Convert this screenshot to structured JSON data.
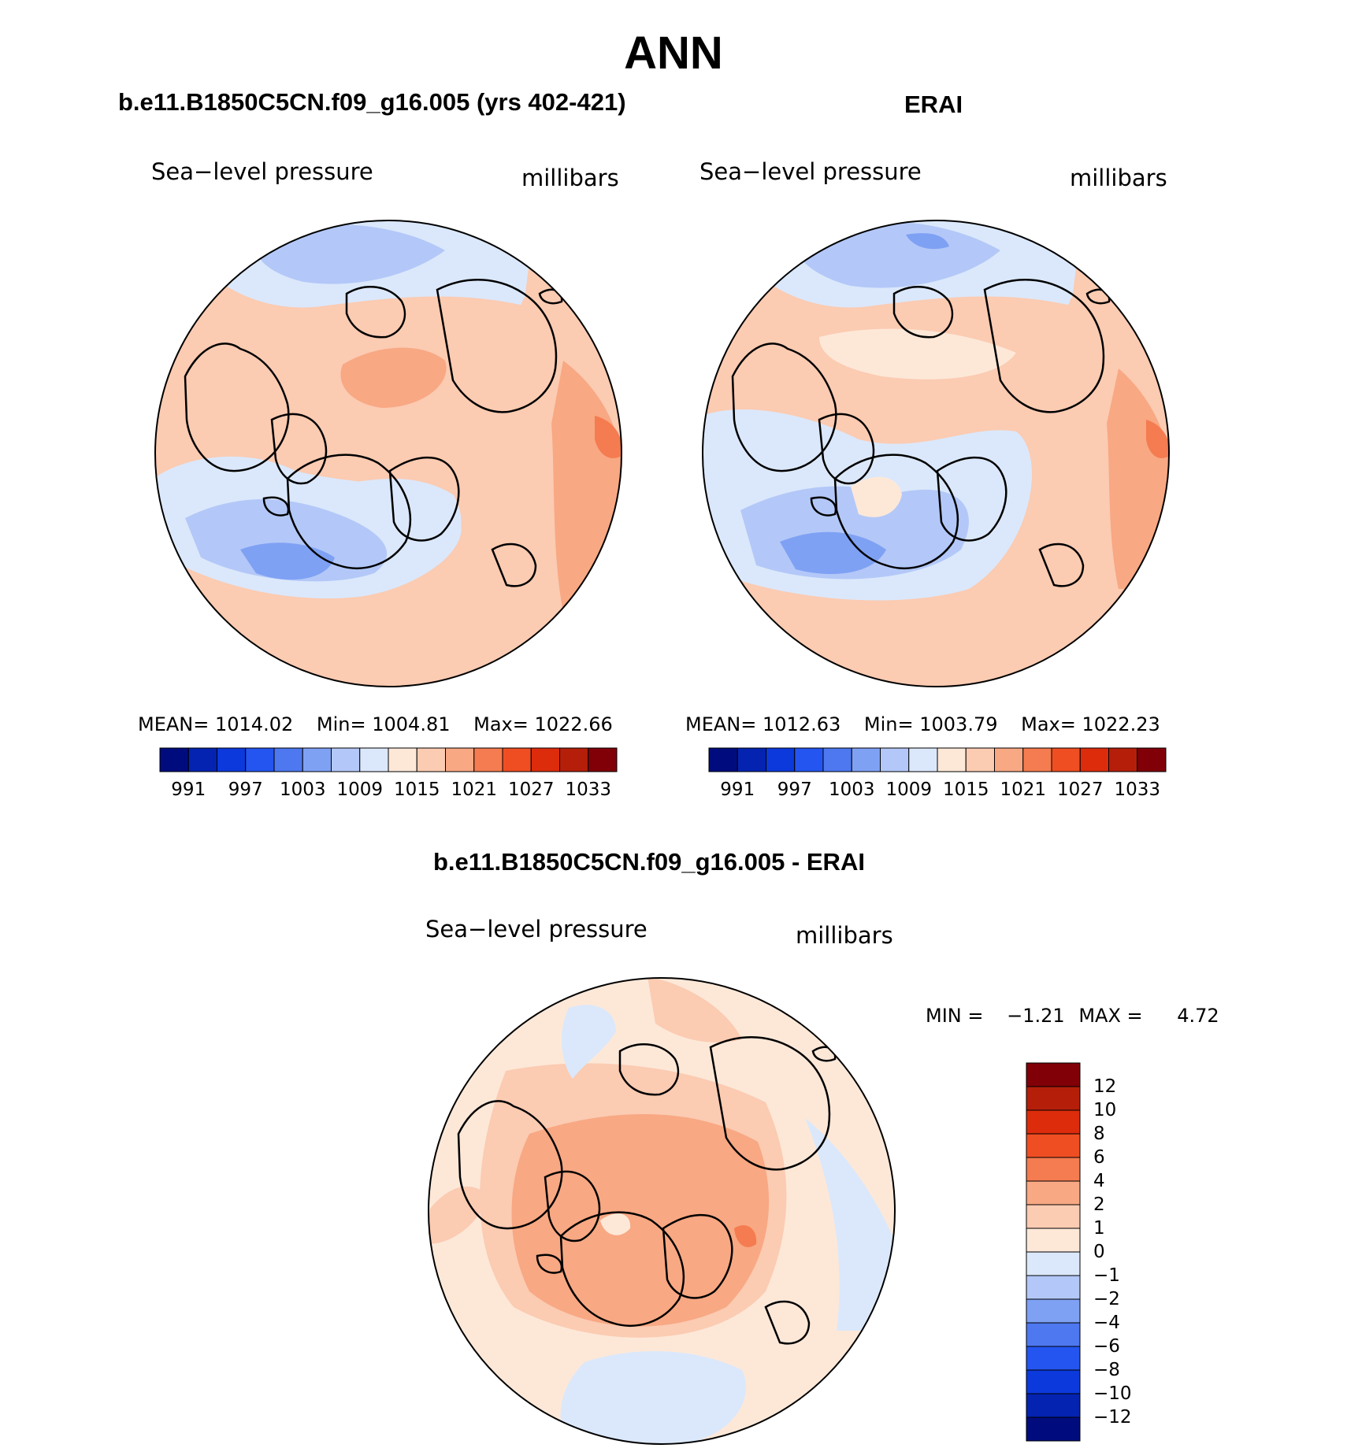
{
  "figure": {
    "title": "ANN",
    "panel_left": {
      "title": "b.e11.B1850C5CN.f09_g16.005 (yrs 402-421)",
      "variable": "Sea−level pressure",
      "units": "millibars",
      "stats": {
        "mean_label": "MEAN=",
        "mean": "1014.02",
        "min_label": "Min=",
        "min": "1004.81",
        "max_label": "Max=",
        "max": "1022.66"
      }
    },
    "panel_right": {
      "title": "ERAI",
      "variable": "Sea−level pressure",
      "units": "millibars",
      "stats": {
        "mean_label": "MEAN=",
        "mean": "1012.63",
        "min_label": "Min=",
        "min": "1003.79",
        "max_label": "Max=",
        "max": "1022.23"
      }
    },
    "panel_diff": {
      "title": "b.e11.B1850C5CN.f09_g16.005 - ERAI",
      "variable": "Sea−level pressure",
      "units": "millibars",
      "stats": {
        "min_label": "MIN =",
        "min": "−1.21",
        "max_label": "MAX =",
        "max": "4.72"
      }
    }
  },
  "colorbars": {
    "abs_labels": [
      "991",
      "997",
      "1003",
      "1009",
      "1015",
      "1021",
      "1027",
      "1033"
    ],
    "abs_colors": [
      "#000c7d",
      "#0323b0",
      "#0b39dc",
      "#2455f0",
      "#4d78f0",
      "#7fa1f4",
      "#b3c8f8",
      "#dbe8fb",
      "#fde8d8",
      "#fbcbb2",
      "#f8a883",
      "#f47c50",
      "#ef4e22",
      "#dc2c0c",
      "#b51f0a",
      "#810008"
    ],
    "diff_labels": [
      "12",
      "10",
      "8",
      "6",
      "4",
      "2",
      "1",
      "0",
      "−1",
      "−2",
      "−4",
      "−6",
      "−8",
      "−10",
      "−12"
    ],
    "diff_colors": [
      "#810008",
      "#b51f0a",
      "#dc2c0c",
      "#ef4e22",
      "#f47c50",
      "#f8a883",
      "#fbcbb2",
      "#fde8d8",
      "#dbe8fb",
      "#b3c8f8",
      "#7fa1f4",
      "#4d78f0",
      "#2455f0",
      "#0b39dc",
      "#0323b0",
      "#000c7d"
    ]
  },
  "colors": {
    "land_outline": "#000000",
    "neutral_pos": "#fde8d8",
    "light_pos": "#fbcbb2",
    "mid_pos": "#f8a883",
    "strong_pos": "#f47c50",
    "light_neg": "#dbe8fb",
    "mid_neg": "#b3c8f8",
    "strong_neg": "#7fa1f4"
  }
}
